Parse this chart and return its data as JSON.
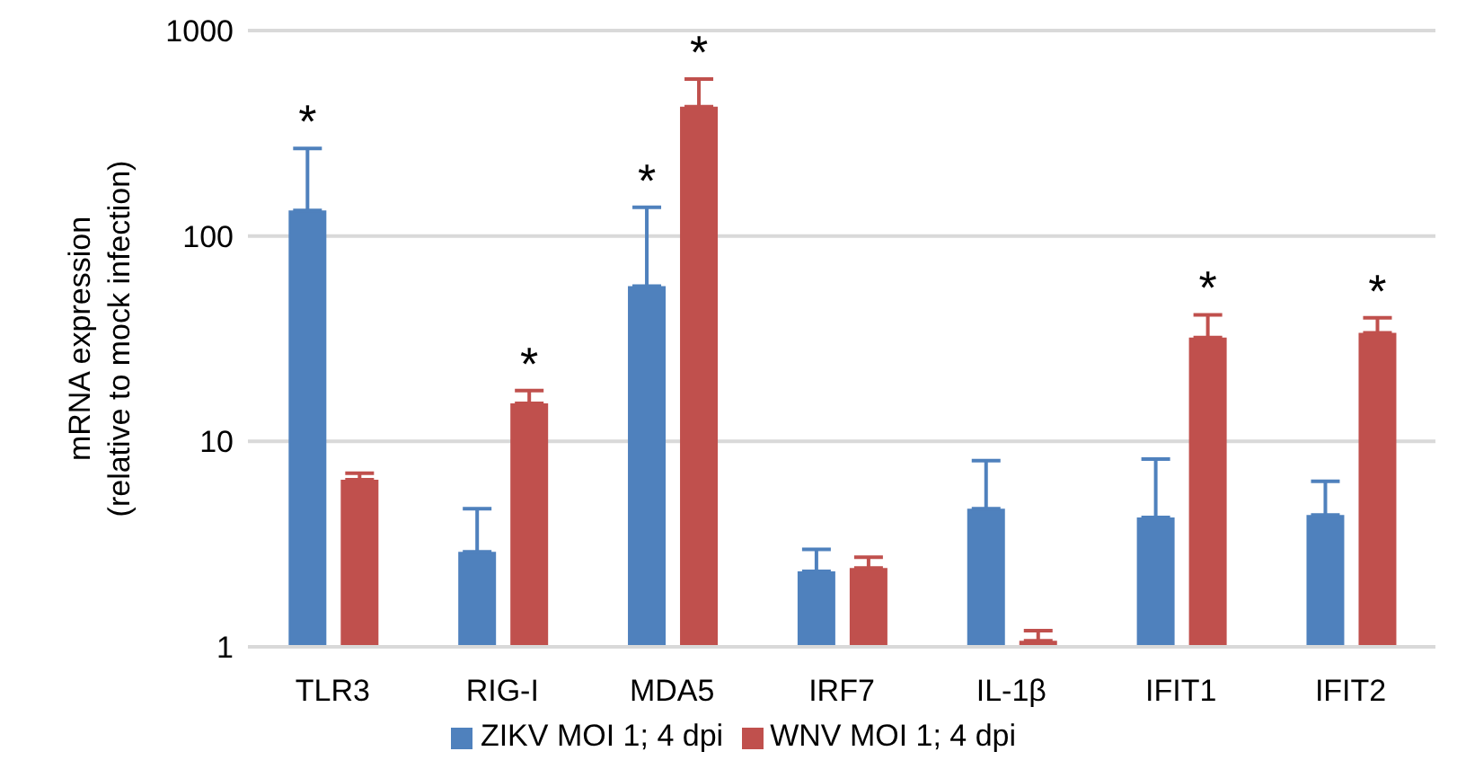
{
  "chart_data": {
    "type": "bar",
    "ylabel": "mRNA expression\n(relative to mock infection)",
    "categories": [
      "TLR3",
      "RIG-I",
      "MDA5",
      "IRF7",
      "IL-1β",
      "IFIT1",
      "IFIT2"
    ],
    "series": [
      {
        "name": "ZIKV MOI 1; 4 dpi",
        "color": "#4f81bd",
        "values": [
          133,
          2.9,
          57,
          2.33,
          4.7,
          4.26,
          4.38
        ],
        "errors": [
          [
            133,
            267
          ],
          [
            2.9,
            4.7
          ],
          [
            57,
            138
          ],
          [
            2.33,
            2.98
          ],
          [
            4.7,
            8.05
          ],
          [
            4.26,
            8.2
          ],
          [
            4.38,
            6.4
          ]
        ],
        "value_labels": [
          "*",
          null,
          "*",
          null,
          null,
          null,
          null
        ]
      },
      {
        "name": "WNV MOI 1; 4 dpi",
        "color": "#c0504d",
        "values": [
          6.5,
          15.3,
          426,
          2.42,
          1.07,
          32,
          33.8
        ],
        "errors": [
          [
            6.5,
            7.0
          ],
          [
            15.3,
            17.7
          ],
          [
            426,
            581
          ],
          [
            2.42,
            2.73
          ],
          [
            1.07,
            1.2
          ],
          [
            32,
            41.3
          ],
          [
            33.8,
            40
          ]
        ],
        "value_labels": [
          null,
          "*",
          "*",
          null,
          null,
          "*",
          "*"
        ]
      }
    ],
    "log": "y",
    "ylim": [
      1,
      1000
    ],
    "yticks": [
      1,
      10,
      100,
      1000
    ],
    "grid": "y",
    "legend": "bottom"
  }
}
